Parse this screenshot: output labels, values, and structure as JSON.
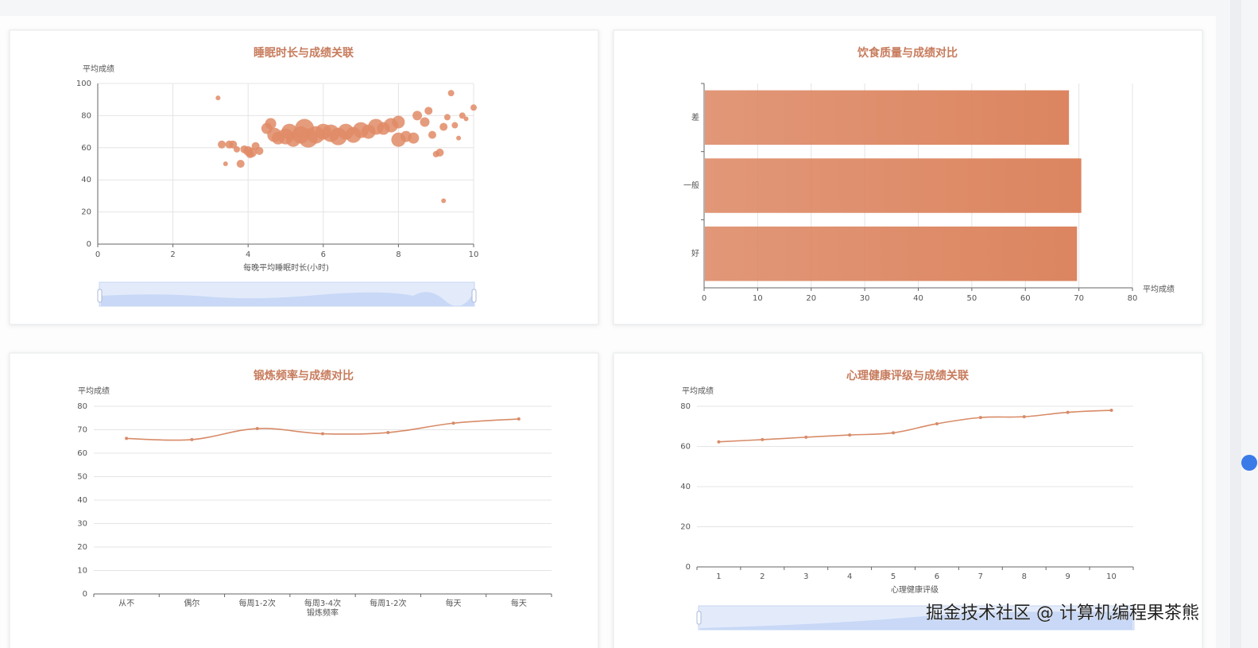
{
  "chart_data": [
    {
      "type": "scatter",
      "title": "睡眠时长与成绩关联",
      "y_name": "平均成绩",
      "x_name": "每晚平均睡眠时长(小时)",
      "x": [
        3.2,
        3.3,
        3.4,
        3.5,
        3.6,
        3.7,
        3.8,
        3.9,
        4.0,
        4.05,
        4.1,
        4.2,
        4.3,
        4.5,
        4.6,
        4.7,
        4.8,
        5.0,
        5.1,
        5.2,
        5.4,
        5.5,
        5.6,
        5.8,
        6.0,
        6.2,
        6.4,
        6.6,
        6.8,
        7.0,
        7.2,
        7.4,
        7.6,
        7.8,
        8.0,
        8.0,
        8.2,
        8.4,
        8.5,
        8.7,
        8.8,
        8.9,
        9.0,
        9.1,
        9.2,
        9.2,
        9.3,
        9.4,
        9.5,
        9.6,
        9.7,
        9.8,
        10.0
      ],
      "values": [
        91,
        62,
        50,
        62,
        62,
        59,
        50,
        59,
        58,
        56,
        57,
        61,
        58,
        72,
        75,
        68,
        66,
        67,
        70,
        65,
        68,
        72,
        66,
        68,
        70,
        69,
        67,
        70,
        68,
        71,
        70,
        73,
        72,
        74,
        65,
        76,
        67,
        66,
        80,
        76,
        83,
        68,
        56,
        57,
        73,
        27,
        79,
        94,
        74,
        66,
        80,
        78,
        85
      ],
      "sizes": [
        3,
        5,
        3,
        5,
        5,
        4,
        5,
        5,
        6,
        5,
        6,
        5,
        5,
        7,
        7,
        9,
        8,
        10,
        10,
        9,
        11,
        12,
        12,
        11,
        10,
        11,
        11,
        10,
        10,
        10,
        9,
        10,
        8,
        9,
        9,
        8,
        7,
        7,
        6,
        6,
        5,
        5,
        4,
        5,
        5,
        3,
        4,
        4,
        4,
        3,
        4,
        3,
        4
      ],
      "color": "#e08b66",
      "xlim": [
        0,
        10
      ],
      "xticks": [
        0,
        2,
        4,
        6,
        8,
        10
      ],
      "ylim": [
        0,
        100
      ],
      "yticks": [
        0,
        20,
        40,
        60,
        80,
        100
      ],
      "grid": true
    },
    {
      "type": "bar",
      "horizontal": true,
      "title": "饮食质量与成绩对比",
      "x_name": "平均成绩",
      "categories": [
        "差",
        "一般",
        "好"
      ],
      "values": [
        68.0,
        70.3,
        69.5
      ],
      "color": "#dc8560",
      "xlim": [
        0,
        80
      ],
      "xticks": [
        0,
        10,
        20,
        30,
        40,
        50,
        60,
        70,
        80
      ],
      "grid": true
    },
    {
      "type": "line",
      "smooth": true,
      "title": "锻炼频率与成绩对比",
      "y_name": "平均成绩",
      "x_name": "锻炼频率",
      "categories": [
        "从不",
        "偶尔",
        "每周1-2次",
        "每周3-4次",
        "每周1-2次",
        "每天",
        "每天"
      ],
      "values": [
        66.3,
        65.8,
        70.5,
        68.3,
        68.8,
        72.8,
        74.6
      ],
      "color": "#d88b68",
      "ylim": [
        0,
        80
      ],
      "yticks": [
        0,
        10,
        20,
        30,
        40,
        50,
        60,
        70,
        80
      ],
      "grid": true
    },
    {
      "type": "line",
      "smooth": true,
      "title": "心理健康评级与成绩关联",
      "y_name": "平均成绩",
      "x_name": "心理健康评级",
      "categories": [
        "1",
        "2",
        "3",
        "4",
        "5",
        "6",
        "7",
        "8",
        "9",
        "10"
      ],
      "values": [
        62.3,
        63.4,
        64.6,
        65.7,
        66.8,
        71.3,
        74.4,
        74.8,
        77.0,
        78.0
      ],
      "color": "#d88b68",
      "ylim": [
        0,
        80
      ],
      "yticks": [
        0,
        20,
        40,
        60,
        80
      ],
      "grid": true
    }
  ],
  "watermark": "掘金技术社区 @ 计算机编程果茶熊"
}
